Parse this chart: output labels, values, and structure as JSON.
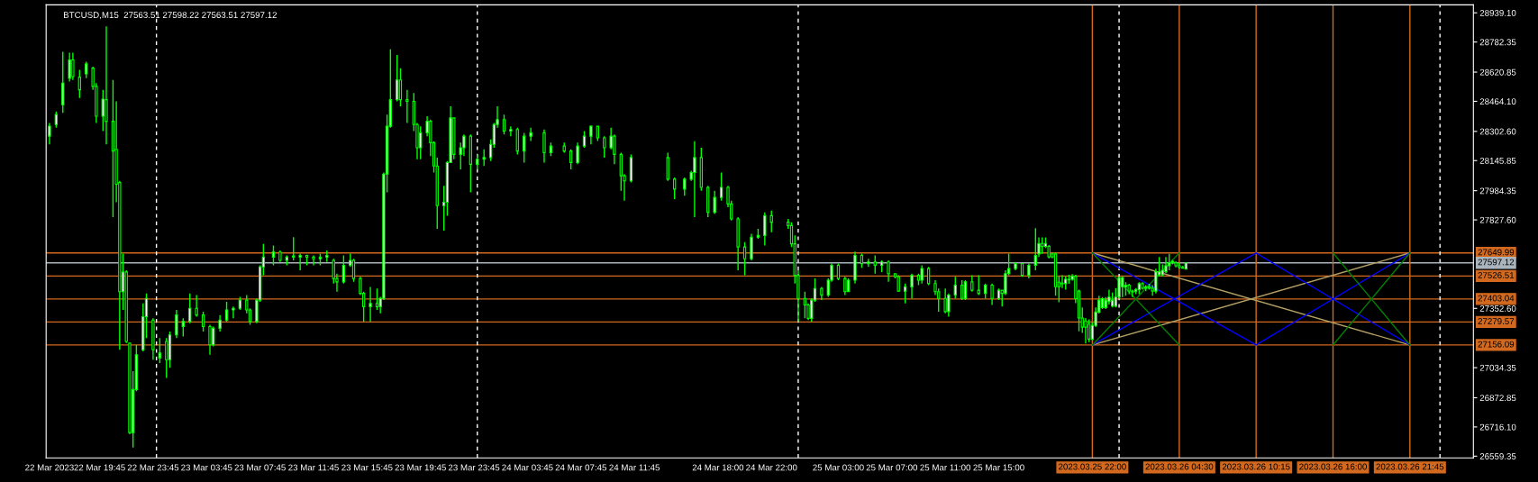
{
  "chart_data": {
    "type": "candlestick",
    "title": "BTCUSD,M15  27563.51 27598.22 27563.51 27597.12",
    "color": "#00ff00",
    "x": [
      "2023-03-22T16:00",
      "2023-03-22T16:30",
      "2023-03-22T17:00",
      "2023-03-22T17:30",
      "2023-03-22T17:45",
      "2023-03-22T18:15",
      "2023-03-22T18:45",
      "2023-03-22T19:15",
      "2023-03-22T19:30",
      "2023-03-22T20:00",
      "2023-03-22T20:15",
      "2023-03-22T20:45",
      "2023-03-22T21:00",
      "2023-03-22T21:15",
      "2023-03-22T21:30",
      "2023-03-22T21:45",
      "2023-03-22T22:00",
      "2023-03-22T22:15",
      "2023-03-22T22:30",
      "2023-03-22T23:00",
      "2023-03-22T23:15",
      "2023-03-22T23:45",
      "2023-03-23T00:15",
      "2023-03-23T00:45",
      "2023-03-23T01:00",
      "2023-03-23T01:30",
      "2023-03-23T02:00",
      "2023-03-23T02:30",
      "2023-03-23T03:00",
      "2023-03-23T03:30",
      "2023-03-23T04:00",
      "2023-03-23T04:15",
      "2023-03-23T04:45",
      "2023-03-23T05:15",
      "2023-03-23T05:45",
      "2023-03-23T06:15",
      "2023-03-23T06:45",
      "2023-03-23T07:00",
      "2023-03-23T07:30",
      "2023-03-23T07:45",
      "2023-03-23T08:00",
      "2023-03-23T08:45",
      "2023-03-23T09:15",
      "2023-03-23T09:45",
      "2023-03-23T10:15",
      "2023-03-23T10:45",
      "2023-03-23T11:15",
      "2023-03-23T11:45",
      "2023-03-23T12:15",
      "2023-03-23T12:45",
      "2023-03-23T13:15",
      "2023-03-23T13:30",
      "2023-03-23T14:00",
      "2023-03-23T14:30",
      "2023-03-23T14:45",
      "2023-03-23T15:15",
      "2023-03-23T15:30",
      "2023-03-23T16:00",
      "2023-03-23T16:30",
      "2023-03-23T16:45",
      "2023-03-23T17:00",
      "2023-03-23T17:15",
      "2023-03-23T17:30",
      "2023-03-23T18:00",
      "2023-03-23T18:15",
      "2023-03-23T18:45",
      "2023-03-23T19:15",
      "2023-03-23T19:30",
      "2023-03-23T19:45",
      "2023-03-23T20:15",
      "2023-03-23T20:30",
      "2023-03-23T20:45",
      "2023-03-23T21:00",
      "2023-03-23T21:30",
      "2023-03-23T21:45",
      "2023-03-23T22:00",
      "2023-03-23T22:15",
      "2023-03-23T22:45",
      "2023-03-23T23:00",
      "2023-03-23T23:30",
      "2023-03-24T00:00",
      "2023-03-24T00:30",
      "2023-03-24T01:00",
      "2023-03-24T01:15",
      "2023-03-24T01:30",
      "2023-03-24T02:00",
      "2023-03-24T02:30",
      "2023-03-24T03:00",
      "2023-03-24T03:30",
      "2023-03-24T04:00",
      "2023-03-24T05:00",
      "2023-03-24T05:30",
      "2023-03-24T06:30",
      "2023-03-24T07:00",
      "2023-03-24T07:30",
      "2023-03-24T08:00",
      "2023-03-24T08:30",
      "2023-03-24T09:00",
      "2023-03-24T09:30",
      "2023-03-24T10:00",
      "2023-03-24T10:15",
      "2023-03-24T10:45",
      "2023-03-24T11:00",
      "2023-03-24T11:30",
      "2023-03-24T14:15",
      "2023-03-24T14:45",
      "2023-03-24T15:30",
      "2023-03-24T16:00",
      "2023-03-24T16:15",
      "2023-03-24T16:45",
      "2023-03-24T17:15",
      "2023-03-24T17:45",
      "2023-03-24T18:15",
      "2023-03-24T18:45",
      "2023-03-24T19:00",
      "2023-03-24T19:30",
      "2023-03-24T20:00",
      "2023-03-24T20:30",
      "2023-03-24T21:00",
      "2023-03-24T21:30",
      "2023-03-24T22:00",
      "2023-03-24T23:15",
      "2023-03-24T23:30",
      "2023-03-24T23:45",
      "2023-03-25T00:00",
      "2023-03-25T00:30",
      "2023-03-25T00:45",
      "2023-03-25T01:00",
      "2023-03-25T01:15",
      "2023-03-25T01:45",
      "2023-03-25T02:15",
      "2023-03-25T02:30",
      "2023-03-25T03:00",
      "2023-03-25T03:30",
      "2023-03-25T03:45",
      "2023-03-25T04:15",
      "2023-03-25T04:45",
      "2023-03-25T05:15",
      "2023-03-25T05:45",
      "2023-03-25T06:15",
      "2023-03-25T06:45",
      "2023-03-25T07:15",
      "2023-03-25T07:30",
      "2023-03-25T08:00",
      "2023-03-25T08:30",
      "2023-03-25T09:00",
      "2023-03-25T09:15",
      "2023-03-25T09:45",
      "2023-03-25T10:15",
      "2023-03-25T10:30",
      "2023-03-25T11:00",
      "2023-03-25T11:15",
      "2023-03-25T11:45",
      "2023-03-25T12:15",
      "2023-03-25T12:30",
      "2023-03-25T13:00",
      "2023-03-25T13:30",
      "2023-03-25T14:00",
      "2023-03-25T14:30",
      "2023-03-25T15:00",
      "2023-03-25T15:15",
      "2023-03-25T15:30",
      "2023-03-25T15:45",
      "2023-03-25T16:15",
      "2023-03-25T16:45",
      "2023-03-25T17:15",
      "2023-03-25T17:45",
      "2023-03-25T18:00",
      "2023-03-25T18:15",
      "2023-03-25T18:30",
      "2023-03-25T18:45",
      "2023-03-25T19:00",
      "2023-03-25T19:15",
      "2023-03-25T19:30",
      "2023-03-25T19:45",
      "2023-03-25T20:00",
      "2023-03-25T20:15",
      "2023-03-25T20:30",
      "2023-03-25T20:45",
      "2023-03-25T21:00",
      "2023-03-25T21:15",
      "2023-03-25T21:30",
      "2023-03-25T21:45",
      "2023-03-25T22:00",
      "2023-03-25T22:15",
      "2023-03-25T22:30",
      "2023-03-25T22:45",
      "2023-03-25T23:00",
      "2023-03-25T23:15",
      "2023-03-25T23:30",
      "2023-03-25T23:45",
      "2023-03-26T00:00",
      "2023-03-26T00:15",
      "2023-03-26T00:30",
      "2023-03-26T00:45",
      "2023-03-26T01:00",
      "2023-03-26T01:15",
      "2023-03-26T01:30",
      "2023-03-26T01:45",
      "2023-03-26T02:00",
      "2023-03-26T02:15",
      "2023-03-26T02:30",
      "2023-03-26T02:45",
      "2023-03-26T03:00",
      "2023-03-26T03:15",
      "2023-03-26T03:30",
      "2023-03-26T03:45",
      "2023-03-26T04:00",
      "2023-03-26T04:15",
      "2023-03-26T04:30",
      "2023-03-26T04:45",
      "2023-03-26T05:00"
    ],
    "ohlc": [
      [
        28277,
        28348,
        28233,
        28331
      ],
      [
        28339,
        28410,
        28322,
        28393
      ],
      [
        28446,
        28730,
        28402,
        28562
      ],
      [
        28588,
        28725,
        28570,
        28686
      ],
      [
        28686,
        28725,
        28579,
        28597
      ],
      [
        28594,
        28633,
        28482,
        28526
      ],
      [
        28611,
        28677,
        28588,
        28665
      ],
      [
        28642,
        28650,
        28526,
        28544
      ],
      [
        28544,
        28562,
        28348,
        28384
      ],
      [
        28384,
        28526,
        28304,
        28476
      ],
      [
        28473,
        28867,
        28233,
        28357
      ],
      [
        28357,
        28579,
        27842,
        28197
      ],
      [
        28206,
        28464,
        27922,
        28019
      ],
      [
        28028,
        28037,
        27130,
        27442
      ],
      [
        27442,
        27646,
        27344,
        27548
      ],
      [
        27548,
        27557,
        27166,
        27175
      ],
      [
        27166,
        27166,
        26677,
        26686
      ],
      [
        26686,
        27015,
        26606,
        26917
      ],
      [
        26917,
        27157,
        26908,
        27104
      ],
      [
        27130,
        27379,
        27122,
        27308
      ],
      [
        27308,
        27433,
        27193,
        27406
      ],
      [
        27290,
        27299,
        27077,
        27130
      ],
      [
        27086,
        27193,
        27059,
        27113
      ],
      [
        27175,
        27193,
        26979,
        27077
      ],
      [
        27077,
        27228,
        27033,
        27210
      ],
      [
        27210,
        27344,
        27193,
        27317
      ],
      [
        27255,
        27299,
        27202,
        27282
      ],
      [
        27282,
        27433,
        27273,
        27353
      ],
      [
        27353,
        27424,
        27308,
        27317
      ],
      [
        27317,
        27335,
        27228,
        27255
      ],
      [
        27255,
        27264,
        27104,
        27157
      ],
      [
        27157,
        27255,
        27148,
        27246
      ],
      [
        27246,
        27317,
        27228,
        27290
      ],
      [
        27290,
        27388,
        27282,
        27344
      ],
      [
        27344,
        27362,
        27299,
        27353
      ],
      [
        27353,
        27415,
        27344,
        27397
      ],
      [
        27397,
        27424,
        27326,
        27344
      ],
      [
        27344,
        27353,
        27264,
        27282
      ],
      [
        27282,
        27406,
        27273,
        27397
      ],
      [
        27397,
        27584,
        27388,
        27575
      ],
      [
        27575,
        27699,
        27530,
        27628
      ],
      [
        27628,
        27690,
        27584,
        27655
      ],
      [
        27655,
        27664,
        27602,
        27610
      ],
      [
        27610,
        27637,
        27584,
        27628
      ],
      [
        27628,
        27735,
        27610,
        27634
      ],
      [
        27628,
        27646,
        27557,
        27637
      ],
      [
        27637,
        27641,
        27584,
        27628
      ],
      [
        27628,
        27637,
        27584,
        27619
      ],
      [
        27619,
        27646,
        27584,
        27628
      ],
      [
        27628,
        27664,
        27602,
        27637
      ],
      [
        27610,
        27619,
        27486,
        27513
      ],
      [
        27513,
        27539,
        27442,
        27495
      ],
      [
        27495,
        27637,
        27486,
        27584
      ],
      [
        27584,
        27646,
        27575,
        27610
      ],
      [
        27610,
        27619,
        27495,
        27513
      ],
      [
        27513,
        27522,
        27424,
        27433
      ],
      [
        27433,
        27442,
        27282,
        27362
      ],
      [
        27362,
        27468,
        27282,
        27379
      ],
      [
        27379,
        27459,
        27344,
        27362
      ],
      [
        27362,
        27415,
        27326,
        27406
      ],
      [
        27406,
        28082,
        27397,
        28073
      ],
      [
        28073,
        28393,
        27975,
        28330
      ],
      [
        28330,
        28743,
        28322,
        28473
      ],
      [
        28473,
        28713,
        28464,
        28579
      ],
      [
        28579,
        28642,
        28437,
        28473
      ],
      [
        28473,
        28526,
        28348,
        28464
      ],
      [
        28464,
        28508,
        28304,
        28339
      ],
      [
        28339,
        28348,
        28153,
        28215
      ],
      [
        28215,
        28330,
        28153,
        28295
      ],
      [
        28295,
        28384,
        28277,
        28357
      ],
      [
        28357,
        28366,
        28170,
        28242
      ],
      [
        28242,
        28250,
        28082,
        28117
      ],
      [
        28117,
        28162,
        27779,
        27904
      ],
      [
        27904,
        28010,
        27770,
        27922
      ],
      [
        27922,
        28144,
        27850,
        28135
      ],
      [
        28135,
        28437,
        28135,
        28375
      ],
      [
        28375,
        28375,
        28153,
        28179
      ],
      [
        28179,
        28242,
        28099,
        28215
      ],
      [
        28215,
        28286,
        28170,
        28277
      ],
      [
        28277,
        28286,
        27975,
        28126
      ],
      [
        28126,
        28179,
        28099,
        28153
      ],
      [
        28153,
        28206,
        28117,
        28162
      ],
      [
        28162,
        28260,
        28144,
        28233
      ],
      [
        28233,
        28348,
        28215,
        28339
      ],
      [
        28339,
        28437,
        28322,
        28366
      ],
      [
        28366,
        28393,
        28286,
        28304
      ],
      [
        28304,
        28330,
        28277,
        28313
      ],
      [
        28313,
        28322,
        28179,
        28197
      ],
      [
        28197,
        28295,
        28135,
        28277
      ],
      [
        28277,
        28322,
        28251,
        28295
      ],
      [
        28295,
        28313,
        28135,
        28188
      ],
      [
        28188,
        28242,
        28170,
        28224
      ],
      [
        28224,
        28242,
        28188,
        28197
      ],
      [
        28197,
        28206,
        28099,
        28135
      ],
      [
        28135,
        28242,
        28126,
        28224
      ],
      [
        28224,
        28304,
        28215,
        28277
      ],
      [
        28277,
        28334,
        28233,
        28330
      ],
      [
        28330,
        28330,
        28251,
        28268
      ],
      [
        28268,
        28277,
        28162,
        28215
      ],
      [
        28215,
        28322,
        28206,
        28277
      ],
      [
        28277,
        28286,
        28126,
        28179
      ],
      [
        28179,
        28188,
        27984,
        28064
      ],
      [
        28064,
        28073,
        27931,
        28037
      ],
      [
        28037,
        28179,
        28028,
        28162
      ],
      [
        28162,
        28188,
        28037,
        28046
      ],
      [
        28046,
        28055,
        27939,
        27993
      ],
      [
        27993,
        28055,
        27957,
        28046
      ],
      [
        28046,
        28091,
        28037,
        28082
      ],
      [
        28082,
        28250,
        27842,
        28162
      ],
      [
        28162,
        28215,
        27984,
        28002
      ],
      [
        28002,
        28010,
        27842,
        27868
      ],
      [
        27868,
        27984,
        27859,
        27948
      ],
      [
        27948,
        28082,
        27931,
        28002
      ],
      [
        28002,
        28010,
        27895,
        27913
      ],
      [
        27913,
        27931,
        27824,
        27833
      ],
      [
        27833,
        27842,
        27557,
        27682
      ],
      [
        27682,
        27708,
        27530,
        27619
      ],
      [
        27619,
        27753,
        27610,
        27735
      ],
      [
        27735,
        27779,
        27726,
        27744
      ],
      [
        27744,
        27868,
        27690,
        27850
      ],
      [
        27850,
        27877,
        27762,
        27815
      ],
      [
        27815,
        27833,
        27779,
        27797
      ],
      [
        27797,
        27815,
        27682,
        27699
      ],
      [
        27699,
        27744,
        27486,
        27530
      ],
      [
        27530,
        27557,
        27282,
        27406
      ],
      [
        27406,
        27442,
        27299,
        27371
      ],
      [
        27371,
        27379,
        27290,
        27299
      ],
      [
        27299,
        27406,
        27282,
        27397
      ],
      [
        27397,
        27513,
        27388,
        27459
      ],
      [
        27459,
        27468,
        27397,
        27424
      ],
      [
        27424,
        27513,
        27415,
        27504
      ],
      [
        27504,
        27593,
        27495,
        27584
      ],
      [
        27584,
        27593,
        27504,
        27513
      ],
      [
        27513,
        27522,
        27424,
        27442
      ],
      [
        27442,
        27513,
        27442,
        27504
      ],
      [
        27504,
        27658,
        27486,
        27637
      ],
      [
        27637,
        27646,
        27570,
        27593
      ],
      [
        27593,
        27619,
        27575,
        27602
      ],
      [
        27602,
        27637,
        27539,
        27584
      ],
      [
        27584,
        27610,
        27548,
        27602
      ],
      [
        27602,
        27610,
        27495,
        27539
      ],
      [
        27539,
        27539,
        27513,
        27522
      ],
      [
        27522,
        27530,
        27442,
        27445
      ],
      [
        27445,
        27486,
        27379,
        27468
      ],
      [
        27468,
        27539,
        27406,
        27530
      ],
      [
        27530,
        27539,
        27477,
        27504
      ],
      [
        27504,
        27584,
        27486,
        27566
      ],
      [
        27566,
        27575,
        27477,
        27486
      ],
      [
        27486,
        27504,
        27424,
        27442
      ],
      [
        27442,
        27459,
        27335,
        27406
      ],
      [
        27406,
        27459,
        27326,
        27335
      ],
      [
        27335,
        27433,
        27308,
        27424
      ],
      [
        27424,
        27522,
        27406,
        27477
      ],
      [
        27477,
        27504,
        27397,
        27406
      ],
      [
        27406,
        27504,
        27397,
        27495
      ],
      [
        27495,
        27530,
        27442,
        27450
      ],
      [
        27450,
        27530,
        27424,
        27433
      ],
      [
        27433,
        27486,
        27406,
        27477
      ],
      [
        27477,
        27486,
        27371,
        27406
      ],
      [
        27406,
        27459,
        27397,
        27450
      ],
      [
        27450,
        27450,
        27362,
        27433
      ],
      [
        27433,
        27557,
        27424,
        27539
      ],
      [
        27539,
        27646,
        27530,
        27566
      ],
      [
        27566,
        27602,
        27557,
        27593
      ],
      [
        27593,
        27593,
        27522,
        27530
      ],
      [
        27530,
        27593,
        27513,
        27584
      ],
      [
        27584,
        27783,
        27557,
        27637
      ],
      [
        27645,
        27733,
        27629,
        27701
      ],
      [
        27701,
        27733,
        27645,
        27685
      ],
      [
        27685,
        27733,
        27677,
        27701
      ],
      [
        27685,
        27693,
        27621,
        27629
      ],
      [
        27645,
        27653,
        27621,
        27629
      ],
      [
        27645,
        27653,
        27421,
        27469
      ],
      [
        27493,
        27525,
        27385,
        27469
      ],
      [
        27488,
        27530,
        27461,
        27485
      ],
      [
        27485,
        27525,
        27453,
        27509
      ],
      [
        27509,
        27533,
        27485,
        27505
      ],
      [
        27509,
        27536,
        27501,
        27525
      ],
      [
        27525,
        27533,
        27381,
        27405
      ],
      [
        27445,
        27453,
        27229,
        27301
      ],
      [
        27301,
        27357,
        27221,
        27252
      ],
      [
        27285,
        27301,
        27164,
        27252
      ],
      [
        27268,
        27293,
        27172,
        27188
      ],
      [
        27188,
        27277,
        27180,
        27261
      ],
      [
        27261,
        27357,
        27253,
        27333
      ],
      [
        27333,
        27421,
        27325,
        27397
      ],
      [
        27357,
        27413,
        27349,
        27405
      ],
      [
        27357,
        27413,
        27349,
        27397
      ],
      [
        27389,
        27453,
        27373,
        27413
      ],
      [
        27365,
        27437,
        27357,
        27397
      ],
      [
        27365,
        27461,
        27357,
        27413
      ],
      [
        27413,
        27525,
        27405,
        27517
      ],
      [
        27469,
        27525,
        27413,
        27517
      ],
      [
        27469,
        27493,
        27421,
        27477
      ],
      [
        27477,
        27485,
        27429,
        27445
      ],
      [
        27445,
        27453,
        27413,
        27440
      ],
      [
        27445,
        27461,
        27429,
        27453
      ],
      [
        27453,
        27493,
        27429,
        27485
      ],
      [
        27485,
        27493,
        27453,
        27461
      ],
      [
        27461,
        27477,
        27445,
        27469
      ],
      [
        27469,
        27485,
        27453,
        27461
      ],
      [
        27461,
        27477,
        27421,
        27445
      ],
      [
        27445,
        27565,
        27433,
        27549
      ],
      [
        27533,
        27629,
        27525,
        27549
      ],
      [
        27533,
        27589,
        27525,
        27557
      ],
      [
        27549,
        27629,
        27541,
        27581
      ],
      [
        27581,
        27645,
        27557,
        27597
      ],
      [
        27597,
        27613,
        27589,
        27605
      ],
      [
        27597,
        27605,
        27573,
        27581
      ],
      [
        27581,
        27597,
        27565,
        27573
      ],
      [
        27573,
        27581,
        27565,
        27568
      ],
      [
        27563.51,
        27598.22,
        27563.51,
        27597.12
      ]
    ],
    "series": [
      {
        "type": "line",
        "color": "#b4a064",
        "x": [
          "2023-03-25T22:00",
          "2023-03-26T21:45"
        ],
        "values": [
          27650,
          27156
        ]
      },
      {
        "type": "line",
        "color": "#b4a064",
        "x": [
          "2023-03-25T22:00",
          "2023-03-26T21:45"
        ],
        "values": [
          27156,
          27650
        ]
      },
      {
        "type": "line",
        "color": "#0000ff",
        "x": [
          "2023-03-25T22:00",
          "2023-03-26T10:15",
          "2023-03-26T21:45"
        ],
        "values": [
          27650,
          27156,
          27650
        ]
      },
      {
        "type": "line",
        "color": "#0000ff",
        "x": [
          "2023-03-25T22:00",
          "2023-03-26T10:15",
          "2023-03-26T21:45"
        ],
        "values": [
          27156,
          27650,
          27156
        ]
      },
      {
        "type": "line",
        "color": "#008000",
        "x": [
          "2023-03-25T22:00",
          "2023-03-26T04:30"
        ],
        "values": [
          27650,
          27156
        ]
      },
      {
        "type": "line",
        "color": "#008000",
        "x": [
          "2023-03-25T22:00",
          "2023-03-26T04:30"
        ],
        "values": [
          27156,
          27650
        ]
      },
      {
        "type": "line",
        "color": "#008000",
        "x": [
          "2023-03-26T16:00",
          "2023-03-26T21:45"
        ],
        "values": [
          27650,
          27156
        ]
      },
      {
        "type": "line",
        "color": "#008000",
        "x": [
          "2023-03-26T16:00",
          "2023-03-26T21:45"
        ],
        "values": [
          27156,
          27650
        ]
      }
    ],
    "ref_lines": [
      {
        "axis": "y",
        "value": 27649.99,
        "label": "27649.99",
        "color": "#d2691e"
      },
      {
        "axis": "y",
        "value": 27597.12,
        "label": "27597.12",
        "color": "#a9b4bd"
      },
      {
        "axis": "y",
        "value": 27526.51,
        "label": "27526.51",
        "color": "#d2691e"
      },
      {
        "axis": "y",
        "value": 27403.04,
        "label": "27403.04",
        "color": "#d2691e"
      },
      {
        "axis": "y",
        "value": 27279.57,
        "label": "27279.57",
        "color": "#d2691e"
      },
      {
        "axis": "y",
        "value": 27156.09,
        "label": "27156.09",
        "color": "#d2691e"
      },
      {
        "axis": "x",
        "value": "2023-03-25T22:00",
        "label": "2023.03.25 22:00",
        "color": "#d2691e"
      },
      {
        "axis": "x",
        "value": "2023-03-26T04:30",
        "label": "2023.03.26 04:30",
        "color": "#d2691e"
      },
      {
        "axis": "x",
        "value": "2023-03-26T10:15",
        "label": "2023.03.26 10:15",
        "color": "#d2691e"
      },
      {
        "axis": "x",
        "value": "2023-03-26T16:00",
        "label": "2023.03.26 16:00",
        "color": "#d2691e"
      },
      {
        "axis": "x",
        "value": "2023-03-26T21:45",
        "label": "2023.03.26 21:45",
        "color": "#d2691e"
      },
      {
        "axis": "x",
        "value": "2023-03-23T00:00",
        "label": null,
        "color": "#ffffff",
        "line_style": "dashed"
      },
      {
        "axis": "x",
        "value": "2023-03-24T00:00",
        "label": null,
        "color": "#ffffff",
        "line_style": "dashed"
      },
      {
        "axis": "x",
        "value": "2023-03-25T00:00",
        "label": null,
        "color": "#ffffff",
        "line_style": "dashed"
      },
      {
        "axis": "x",
        "value": "2023-03-26T00:00",
        "label": null,
        "color": "#ffffff",
        "line_style": "dashed"
      },
      {
        "axis": "x",
        "value": "2023-03-27T00:00",
        "label": null,
        "color": "#ffffff",
        "line_style": "dashed"
      }
    ],
    "xlim": [
      "2023-03-22T15:45",
      "2023-03-27T02:30"
    ],
    "xticks": [
      {
        "value": "2023-03-22T16:00",
        "label": "22 Mar 2023"
      },
      {
        "value": "2023-03-22T19:45",
        "label": "22 Mar 19:45"
      },
      {
        "value": "2023-03-22T23:45",
        "label": "22 Mar 23:45"
      },
      {
        "value": "2023-03-23T03:45",
        "label": "23 Mar 03:45"
      },
      {
        "value": "2023-03-23T07:45",
        "label": "23 Mar 07:45"
      },
      {
        "value": "2023-03-23T11:45",
        "label": "23 Mar 11:45"
      },
      {
        "value": "2023-03-23T15:45",
        "label": "23 Mar 15:45"
      },
      {
        "value": "2023-03-23T19:45",
        "label": "23 Mar 19:45"
      },
      {
        "value": "2023-03-23T23:45",
        "label": "23 Mar 23:45"
      },
      {
        "value": "2023-03-24T03:45",
        "label": "24 Mar 03:45"
      },
      {
        "value": "2023-03-24T07:45",
        "label": "24 Mar 07:45"
      },
      {
        "value": "2023-03-24T11:45",
        "label": "24 Mar 11:45"
      },
      {
        "value": "2023-03-24T18:00",
        "label": "24 Mar 18:00"
      },
      {
        "value": "2023-03-24T22:00",
        "label": "24 Mar 22:00"
      },
      {
        "value": "2023-03-25T03:00",
        "label": "25 Mar 03:00"
      },
      {
        "value": "2023-03-25T07:00",
        "label": "25 Mar 07:00"
      },
      {
        "value": "2023-03-25T11:00",
        "label": "25 Mar 11:00"
      },
      {
        "value": "2023-03-25T15:00",
        "label": "25 Mar 15:00"
      }
    ],
    "ylim": [
      26550,
      28982
    ],
    "yticks": [
      {
        "value": 28939.1,
        "label": "28939.10"
      },
      {
        "value": 28782.35,
        "label": "28782.35"
      },
      {
        "value": 28620.85,
        "label": "28620.85"
      },
      {
        "value": 28464.1,
        "label": "28464.10"
      },
      {
        "value": 28302.6,
        "label": "28302.60"
      },
      {
        "value": 28145.85,
        "label": "28145.85"
      },
      {
        "value": 27984.35,
        "label": "27984.35"
      },
      {
        "value": 27827.6,
        "label": "27827.60"
      },
      {
        "value": 27352.6,
        "label": "27352.60"
      },
      {
        "value": 27034.35,
        "label": "27034.35"
      },
      {
        "value": 26872.85,
        "label": "26872.85"
      },
      {
        "value": 26716.1,
        "label": "26716.10"
      },
      {
        "value": 26559.35,
        "label": "26559.35"
      }
    ],
    "grid": false
  }
}
